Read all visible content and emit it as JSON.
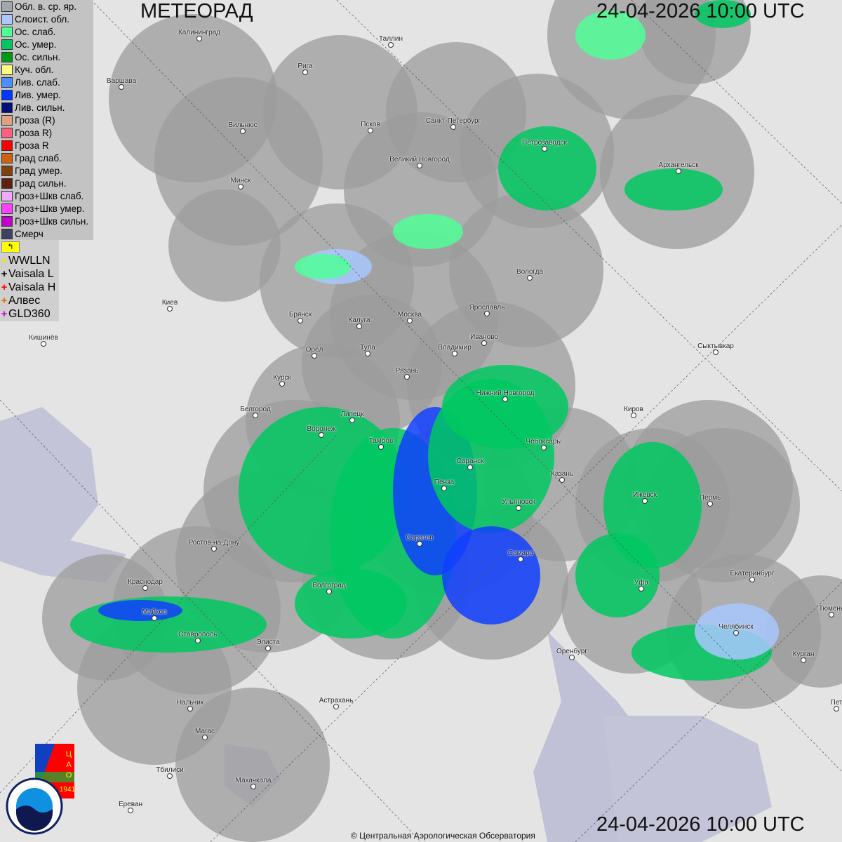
{
  "title": "МЕТЕОРАД",
  "timestamp_top": "24-04-2026  10:00 UTC",
  "timestamp_bottom": "24-04-2026  10:00 UTC",
  "legend": [
    {
      "label": "Обл. в. ср. яр.",
      "color": "#a0a8ac"
    },
    {
      "label": "Слоист. обл.",
      "color": "#a8c8ff"
    },
    {
      "label": "Ос. слаб.",
      "color": "#50ff98"
    },
    {
      "label": "Ос. умер.",
      "color": "#00c860"
    },
    {
      "label": "Ос. сильн.",
      "color": "#009a18"
    },
    {
      "label": "Куч. обл.",
      "color": "#ffff80"
    },
    {
      "label": "Лив. слаб.",
      "color": "#4890ff"
    },
    {
      "label": "Лив. умер.",
      "color": "#0038ff"
    },
    {
      "label": "Лив. сильн.",
      "color": "#001078"
    },
    {
      "label": "Гроза (R)",
      "color": "#e0a080"
    },
    {
      "label": "Гроза R)",
      "color": "#ff6080"
    },
    {
      "label": "Гроза R",
      "color": "#ff0000"
    },
    {
      "label": "Град слаб.",
      "color": "#d06010"
    },
    {
      "label": "Град умер.",
      "color": "#804010"
    },
    {
      "label": "Град сильн.",
      "color": "#602010"
    },
    {
      "label": "Гроз+Шкв слаб.",
      "color": "#f0a8ff"
    },
    {
      "label": "Гроз+Шкв умер.",
      "color": "#ff40ff"
    },
    {
      "label": "Гроз+Шкв сильн.",
      "color": "#c000c8"
    },
    {
      "label": "Смерч",
      "color": "#404060"
    }
  ],
  "lightning": [
    {
      "label": "WWLLN",
      "color": "#ffe000"
    },
    {
      "label": "Vaisala L",
      "color": "#000000"
    },
    {
      "label": "Vaisala H",
      "color": "#ff0000"
    },
    {
      "label": "Алвес",
      "color": "#e07000"
    },
    {
      "label": "GLD360",
      "color": "#d000d0"
    }
  ],
  "cities": [
    "Калининград",
    "Таллин",
    "Рига",
    "Варшава",
    "Санкт-Петербург",
    "Вильнюс",
    "Псков",
    "Петрозаводск",
    "Архангельск",
    "Великий Новгород",
    "Минск",
    "Вологда",
    "Киев",
    "Брянск",
    "Москва",
    "Ярославль",
    "Калуга",
    "Иваново",
    "Кишинёв",
    "Орёл",
    "Тула",
    "Владимир",
    "Сыктывкар",
    "Рязань",
    "Курск",
    "Нижний Новгород",
    "Белгород",
    "Киров",
    "Липецк",
    "Воронеж",
    "Тамбов",
    "Чебоксары",
    "Саранск",
    "Казань",
    "Пенза",
    "Ижевск",
    "Пермь",
    "Ульяновск",
    "Саратов",
    "Ростов-на-Дону",
    "Самара",
    "Екатеринбург",
    "Уфа",
    "Краснодар",
    "Волгоград",
    "Тюмень",
    "Майкоп",
    "Челябинск",
    "Ставрополь",
    "Элиста",
    "Оренбург",
    "Курган",
    "Пет",
    "Астрахань",
    "Нальчик",
    "Магас",
    "Тбилиси",
    "Махачкала",
    "Ереван"
  ],
  "logos": {
    "cao": "ЦАО 1941",
    "roshydromet": "РОСГИДРОМЕТ ROSHYDROMET"
  },
  "copyright": "© Центральная Аэрологическая Обсерватория"
}
